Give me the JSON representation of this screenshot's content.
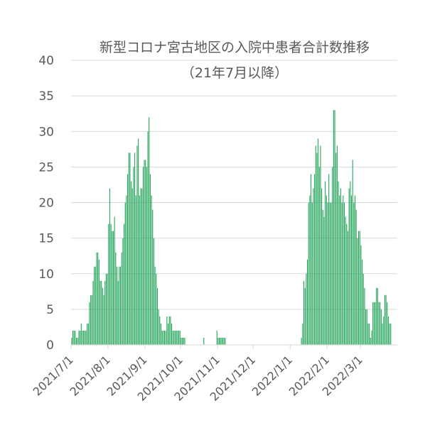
{
  "chart_data": {
    "type": "bar",
    "title": "新型コロナ宮古地区の入院中患者合計数推移",
    "subtitle": "（21年7月以降）",
    "xlabel": "",
    "ylabel": "",
    "ylim": [
      0,
      40
    ],
    "yticks": [
      "0",
      "5",
      "10",
      "15",
      "20",
      "25",
      "30",
      "35",
      "40"
    ],
    "grid": true,
    "bar_color": "#1aa053",
    "x_start": "2021-07-01",
    "x_end": "2022-03-31",
    "xticks": [
      {
        "date": "2021-07-01",
        "label": "2021/7/1"
      },
      {
        "date": "2021-08-01",
        "label": "2021/8/1"
      },
      {
        "date": "2021-09-01",
        "label": "2021/9/1"
      },
      {
        "date": "2021-10-01",
        "label": "2021/10/1"
      },
      {
        "date": "2021-11-01",
        "label": "2021/11/1"
      },
      {
        "date": "2021-12-01",
        "label": "2021/12/1"
      },
      {
        "date": "2022-01-01",
        "label": "2022/1/1"
      },
      {
        "date": "2022-02-01",
        "label": "2022/2/1"
      },
      {
        "date": "2022-03-01",
        "label": "2022/3/1"
      }
    ],
    "series": [
      {
        "values": [
          1,
          2,
          2,
          2,
          1,
          1,
          2,
          2,
          3,
          2,
          2,
          2,
          2,
          3,
          3,
          6,
          7,
          7,
          9,
          11,
          11,
          13,
          13,
          12,
          9,
          9,
          8,
          7,
          9,
          10,
          10,
          17,
          22,
          17,
          16,
          16,
          18,
          13,
          11,
          9,
          11,
          11,
          13,
          15,
          17,
          20,
          21,
          24,
          27,
          27,
          23,
          22,
          25,
          27,
          21,
          28,
          29,
          21,
          22,
          22,
          25,
          26,
          26,
          25,
          30,
          32,
          24,
          21,
          19,
          15,
          11,
          10,
          8,
          5,
          4,
          3,
          2,
          2,
          2,
          2,
          4,
          3,
          4,
          4,
          3,
          2,
          2,
          2,
          2,
          2,
          2,
          2,
          1,
          1,
          1,
          1,
          0,
          0,
          0,
          0,
          0,
          0,
          0,
          0,
          0,
          0,
          0,
          0,
          0,
          0,
          0,
          1,
          0,
          0,
          0,
          0,
          0,
          0,
          0,
          0,
          0,
          0,
          2,
          1,
          1,
          1,
          1,
          1,
          1,
          1,
          0,
          0,
          0,
          0,
          0,
          0,
          0,
          0,
          0,
          0,
          0,
          0,
          0,
          0,
          0,
          0,
          0,
          0,
          0,
          0,
          0,
          0,
          0,
          0,
          0,
          0,
          0,
          0,
          0,
          0,
          0,
          0,
          0,
          0,
          0,
          0,
          0,
          0,
          0,
          0,
          0,
          0,
          0,
          0,
          0,
          0,
          0,
          0,
          0,
          0,
          0,
          0,
          0,
          0,
          0,
          0,
          0,
          0,
          0,
          0,
          0,
          0,
          0,
          1,
          3,
          9,
          8,
          10,
          12,
          20,
          21,
          24,
          20,
          22,
          24,
          28,
          27,
          29,
          25,
          28,
          22,
          19,
          18,
          23,
          21,
          20,
          24,
          20,
          20,
          25,
          33,
          33,
          27,
          28,
          23,
          21,
          22,
          20,
          21,
          20,
          18,
          17,
          16,
          22,
          23,
          21,
          26,
          20,
          21,
          19,
          15,
          16,
          16,
          14,
          12,
          10,
          8,
          5,
          5,
          3,
          3,
          1,
          2,
          6,
          6,
          6,
          8,
          8,
          6,
          6,
          5,
          3,
          4,
          7,
          7,
          6,
          4,
          3,
          3
        ]
      }
    ]
  }
}
